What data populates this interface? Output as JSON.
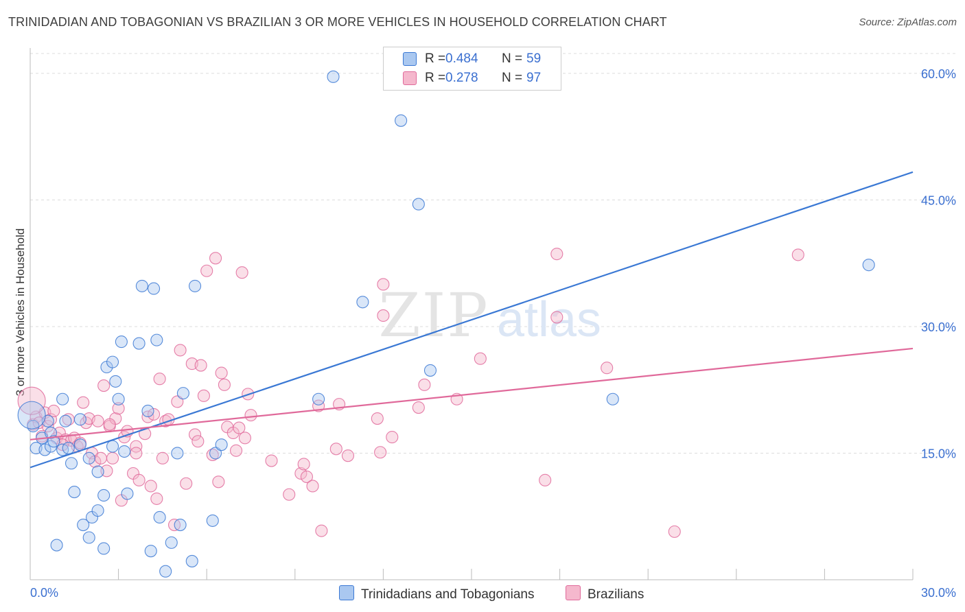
{
  "title": "TRINIDADIAN AND TOBAGONIAN VS BRAZILIAN 3 OR MORE VEHICLES IN HOUSEHOLD CORRELATION CHART",
  "source": "Source: ZipAtlas.com",
  "watermark": {
    "zip": "ZIP",
    "atlas": "atlas"
  },
  "colors": {
    "blue": "#3a78d4",
    "blue_fill": "#aac8f0",
    "pink": "#e0699a",
    "pink_fill": "#f5b8cd",
    "tick_text": "#3a6fd0"
  },
  "legend": {
    "rows": [
      {
        "r_label": "R =",
        "r_value": "0.484",
        "n_label": "N =",
        "n_value": "59"
      },
      {
        "r_label": "R =",
        "r_value": "0.278",
        "n_label": "N =",
        "n_value": "97"
      }
    ]
  },
  "bottom_legend": [
    "Trinidadians and Tobagonians",
    "Brazilians"
  ],
  "chart_data": {
    "type": "scatter",
    "title": "TRINIDADIAN AND TOBAGONIAN VS BRAZILIAN 3 OR MORE VEHICLES IN HOUSEHOLD CORRELATION CHART",
    "xlabel": "",
    "ylabel": "3 or more Vehicles in Household",
    "xlim": [
      0,
      30
    ],
    "ylim": [
      0,
      63
    ],
    "x_tick_labels": [
      "0.0%",
      "30.0%"
    ],
    "y_ticks": [
      15,
      30,
      45,
      60
    ],
    "y_tick_labels": [
      "15.0%",
      "30.0%",
      "45.0%",
      "60.0%"
    ],
    "grid": true,
    "legend_position": "top-center",
    "series": [
      {
        "name": "Trinidadians and Tobagonians",
        "R": 0.484,
        "N": 59,
        "trend": [
          [
            0,
            13.3
          ],
          [
            30,
            48.3
          ]
        ],
        "points": [
          [
            0.1,
            18.2
          ],
          [
            0.2,
            15.6
          ],
          [
            0.4,
            16.8
          ],
          [
            0.5,
            15.4
          ],
          [
            0.6,
            18.8
          ],
          [
            0.7,
            17.4
          ],
          [
            0.7,
            15.8
          ],
          [
            0.8,
            16.4
          ],
          [
            0.9,
            4.1
          ],
          [
            1.1,
            21.4
          ],
          [
            1.1,
            15.4
          ],
          [
            1.2,
            18.8
          ],
          [
            1.3,
            15.6
          ],
          [
            1.4,
            13.8
          ],
          [
            1.5,
            10.4
          ],
          [
            1.7,
            19.0
          ],
          [
            1.7,
            16.0
          ],
          [
            1.8,
            6.5
          ],
          [
            2.0,
            14.4
          ],
          [
            2.0,
            5.0
          ],
          [
            2.1,
            7.4
          ],
          [
            2.3,
            12.8
          ],
          [
            2.3,
            8.2
          ],
          [
            2.5,
            10.0
          ],
          [
            2.5,
            3.7
          ],
          [
            2.6,
            25.2
          ],
          [
            2.8,
            25.8
          ],
          [
            2.8,
            15.8
          ],
          [
            2.9,
            23.5
          ],
          [
            3.0,
            21.4
          ],
          [
            3.1,
            28.2
          ],
          [
            3.2,
            15.2
          ],
          [
            3.3,
            10.2
          ],
          [
            3.7,
            28.0
          ],
          [
            3.8,
            34.8
          ],
          [
            4.0,
            20.0
          ],
          [
            4.1,
            3.4
          ],
          [
            4.2,
            34.5
          ],
          [
            4.3,
            28.4
          ],
          [
            4.4,
            7.4
          ],
          [
            4.6,
            1.0
          ],
          [
            4.8,
            4.4
          ],
          [
            5.0,
            15.0
          ],
          [
            5.1,
            6.5
          ],
          [
            5.2,
            22.1
          ],
          [
            5.5,
            2.2
          ],
          [
            5.6,
            34.8
          ],
          [
            6.2,
            7.0
          ],
          [
            6.3,
            15.0
          ],
          [
            6.5,
            16.0
          ],
          [
            9.8,
            21.4
          ],
          [
            10.3,
            59.6
          ],
          [
            11.3,
            32.9
          ],
          [
            12.6,
            54.4
          ],
          [
            13.2,
            44.5
          ],
          [
            13.6,
            24.8
          ],
          [
            19.8,
            21.4
          ],
          [
            28.5,
            37.3
          ],
          [
            0.05,
            19.5
          ]
        ]
      },
      {
        "name": "Brazilians",
        "R": 0.278,
        "N": 97,
        "trend": [
          [
            0,
            16.6
          ],
          [
            30,
            27.4
          ]
        ],
        "points": [
          [
            0.1,
            18.4
          ],
          [
            0.2,
            19.3
          ],
          [
            0.3,
            18.6
          ],
          [
            0.5,
            19.8
          ],
          [
            0.6,
            18.2
          ],
          [
            0.7,
            19.0
          ],
          [
            0.8,
            20.0
          ],
          [
            0.9,
            16.8
          ],
          [
            1.0,
            17.4
          ],
          [
            1.2,
            16.6
          ],
          [
            1.3,
            19.0
          ],
          [
            1.4,
            16.5
          ],
          [
            1.5,
            16.8
          ],
          [
            1.6,
            15.8
          ],
          [
            1.7,
            16.2
          ],
          [
            1.8,
            21.0
          ],
          [
            1.9,
            18.6
          ],
          [
            2.0,
            19.1
          ],
          [
            2.1,
            15.0
          ],
          [
            2.2,
            14.0
          ],
          [
            2.3,
            18.8
          ],
          [
            2.4,
            14.4
          ],
          [
            2.5,
            23.0
          ],
          [
            2.6,
            12.9
          ],
          [
            2.7,
            18.2
          ],
          [
            2.8,
            14.4
          ],
          [
            2.9,
            19.1
          ],
          [
            3.0,
            20.3
          ],
          [
            3.1,
            9.4
          ],
          [
            3.2,
            16.9
          ],
          [
            3.3,
            17.6
          ],
          [
            3.5,
            12.6
          ],
          [
            3.6,
            15.8
          ],
          [
            3.6,
            15.0
          ],
          [
            3.7,
            11.8
          ],
          [
            3.9,
            17.3
          ],
          [
            4.0,
            19.3
          ],
          [
            4.1,
            11.1
          ],
          [
            4.2,
            19.6
          ],
          [
            4.3,
            9.6
          ],
          [
            4.4,
            23.8
          ],
          [
            4.5,
            14.4
          ],
          [
            4.6,
            18.8
          ],
          [
            4.7,
            19.0
          ],
          [
            4.9,
            6.5
          ],
          [
            5.0,
            21.1
          ],
          [
            5.1,
            27.2
          ],
          [
            5.3,
            11.4
          ],
          [
            5.5,
            25.6
          ],
          [
            5.6,
            17.2
          ],
          [
            5.7,
            16.4
          ],
          [
            5.8,
            25.4
          ],
          [
            5.9,
            21.8
          ],
          [
            6.0,
            36.6
          ],
          [
            6.2,
            14.8
          ],
          [
            6.3,
            38.1
          ],
          [
            6.4,
            11.6
          ],
          [
            6.5,
            24.5
          ],
          [
            6.6,
            23.1
          ],
          [
            6.7,
            18.1
          ],
          [
            6.9,
            17.4
          ],
          [
            7.0,
            15.3
          ],
          [
            7.1,
            18.0
          ],
          [
            7.2,
            36.4
          ],
          [
            7.3,
            16.8
          ],
          [
            7.4,
            22.0
          ],
          [
            7.5,
            19.5
          ],
          [
            8.2,
            14.1
          ],
          [
            8.8,
            10.1
          ],
          [
            9.2,
            12.6
          ],
          [
            9.3,
            13.7
          ],
          [
            9.4,
            12.2
          ],
          [
            9.6,
            11.1
          ],
          [
            9.8,
            20.6
          ],
          [
            9.9,
            5.8
          ],
          [
            10.4,
            15.5
          ],
          [
            10.5,
            20.8
          ],
          [
            10.8,
            14.7
          ],
          [
            11.8,
            19.1
          ],
          [
            11.9,
            15.1
          ],
          [
            12.0,
            31.3
          ],
          [
            12.0,
            35.0
          ],
          [
            12.3,
            16.9
          ],
          [
            13.2,
            20.4
          ],
          [
            13.4,
            23.1
          ],
          [
            14.5,
            21.4
          ],
          [
            15.3,
            26.2
          ],
          [
            17.5,
            11.8
          ],
          [
            17.9,
            31.1
          ],
          [
            17.9,
            38.6
          ],
          [
            19.6,
            25.1
          ],
          [
            21.9,
            5.7
          ],
          [
            26.1,
            38.5
          ],
          [
            0.05,
            21.2
          ],
          [
            0.4,
            17.0
          ],
          [
            1.1,
            16.0
          ],
          [
            2.7,
            18.4
          ]
        ]
      }
    ]
  }
}
